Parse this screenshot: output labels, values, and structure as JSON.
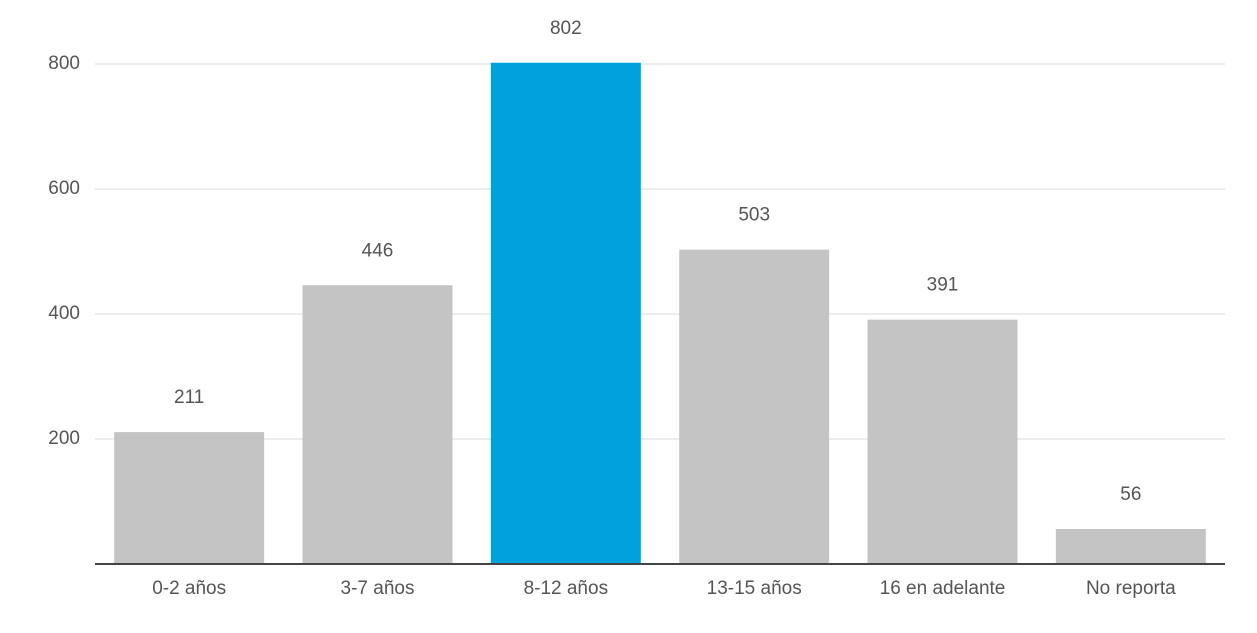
{
  "chart_data": {
    "type": "bar",
    "categories": [
      "0-2 años",
      "3-7 años",
      "8-12 años",
      "13-15 años",
      "16 en adelante",
      "No reporta"
    ],
    "values": [
      211,
      446,
      802,
      503,
      391,
      56
    ],
    "colors": [
      "#c4c4c4",
      "#c4c4c4",
      "#00a2de",
      "#c4c4c4",
      "#c4c4c4",
      "#c4c4c4"
    ],
    "ylim": [
      0,
      800
    ],
    "yticks": [
      200,
      400,
      600,
      800
    ],
    "grid": true
  }
}
